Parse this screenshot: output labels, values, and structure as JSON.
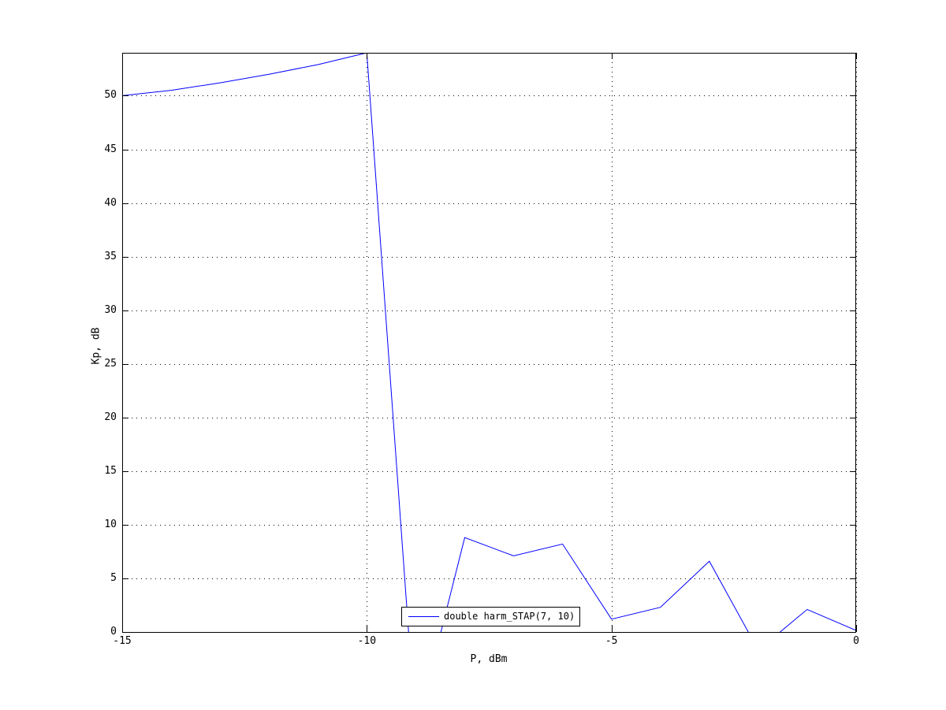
{
  "figure": {
    "background_color": "#ffffff",
    "frame_color": "#000000",
    "grid_color": "#000000",
    "text_color": "#000000"
  },
  "chart_data": {
    "type": "line",
    "title": "",
    "xlabel": "P, dBm",
    "ylabel": "Kp, dB",
    "xlim": [
      -15,
      0
    ],
    "ylim": [
      0,
      54
    ],
    "x_ticks": [
      -15,
      -10,
      -5,
      0
    ],
    "x_tick_labels": [
      "-15",
      "-10",
      "-5",
      "0"
    ],
    "y_ticks": [
      0,
      5,
      10,
      15,
      20,
      25,
      30,
      35,
      40,
      45,
      50
    ],
    "y_tick_labels": [
      "0",
      "5",
      "10",
      "15",
      "20",
      "25",
      "30",
      "35",
      "40",
      "45",
      "50"
    ],
    "grid": true,
    "grid_style": "dotted",
    "legend_position": "inside-bottom-center",
    "series": [
      {
        "name": "double harm_STAP(7, 10)",
        "color": "#0000ff",
        "x": [
          -15,
          -14,
          -13,
          -12,
          -11,
          -10,
          -9,
          -8,
          -7,
          -6,
          -5,
          -4,
          -3,
          -2,
          -1,
          0
        ],
        "y": [
          50.0,
          50.5,
          51.2,
          52.0,
          52.9,
          54.0,
          -9.3,
          8.8,
          7.1,
          8.2,
          1.2,
          2.3,
          6.6,
          -1.7,
          2.1,
          0.15
        ]
      }
    ],
    "clip_to_axes": true
  },
  "legend": {
    "label": "double harm_STAP(7, 10)",
    "line_color": "#0000ff"
  }
}
